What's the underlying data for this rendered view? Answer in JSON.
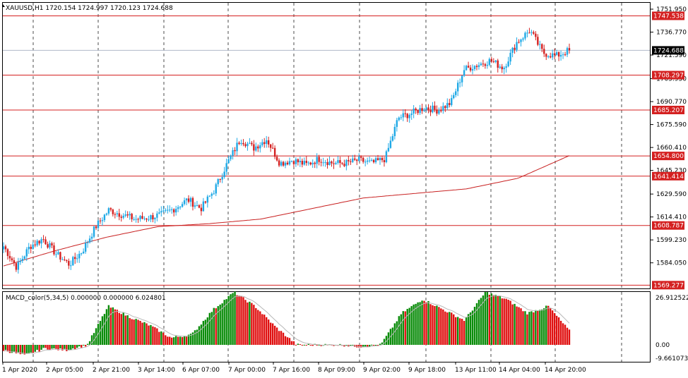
{
  "main_chart": {
    "info_line": "XAUUSD,H1  1720.154 1724.997 1720.123 1724.688",
    "price_scale": {
      "ticks": [
        "1751.950",
        "1736.770",
        "1721.590",
        "1705.950",
        "1690.770",
        "1675.590",
        "1660.410",
        "1645.230",
        "1629.590",
        "1614.410",
        "1599.230",
        "1584.050"
      ],
      "tagged_levels": [
        "1747.538",
        "1708.297",
        "1685.207",
        "1654.800",
        "1641.414",
        "1608.787",
        "1569.277"
      ],
      "current_price_tag": "1724.688"
    }
  },
  "sub_window": {
    "title": "MACD_color(5,34,5) 0.000000 0.000000 6.024801",
    "scale": [
      "26.912522",
      "0.00",
      "-9.661073"
    ]
  },
  "time_axis": [
    "1 Apr 2020",
    "2 Apr 05:00",
    "2 Apr 21:00",
    "3 Apr 14:00",
    "6 Apr 07:00",
    "7 Apr 00:00",
    "7 Apr 16:00",
    "8 Apr 09:00",
    "9 Apr 02:00",
    "9 Apr 18:00",
    "13 Apr 11:00",
    "14 Apr 04:00",
    "14 Apr 20:00"
  ],
  "colors": {
    "bull": "#1fa9e6",
    "bear": "#d42020",
    "level_line": "#d42020",
    "ma_line": "#c82020",
    "histo_up": "#0a8c0a",
    "histo_down": "#e01010",
    "signal": "#b8b8b8",
    "grid": "#000000",
    "current_line": "#b0b8c8"
  },
  "chart_data": {
    "type": "candlestick",
    "symbol": "XAUUSD",
    "timeframe": "H1",
    "series": [
      {
        "name": "XAUUSD,H1",
        "waypoints": [
          1595,
          1581,
          1595,
          1600,
          1590,
          1583,
          1592,
          1608,
          1619,
          1616,
          1613,
          1614,
          1616,
          1620,
          1626,
          1620,
          1632,
          1650,
          1666,
          1660,
          1666,
          1650,
          1652,
          1649,
          1653,
          1650,
          1650,
          1652,
          1650,
          1653,
          1680,
          1683,
          1687,
          1685,
          1690,
          1712,
          1715,
          1718,
          1713,
          1730,
          1738,
          1723,
          1721,
          1724.688
        ]
      },
      {
        "name": "MA",
        "waypoints": [
          1582,
          1592,
          1601,
          1608,
          1610,
          1613,
          1620,
          1627,
          1630,
          1633,
          1640,
          1655
        ]
      },
      {
        "name": "MACD_color(5,34,5)",
        "waypoints": [
          -3,
          -6,
          -2,
          -3,
          0,
          22,
          16,
          11,
          4,
          6,
          20,
          30,
          22,
          10,
          0,
          0,
          0,
          -1,
          0,
          18,
          26,
          20,
          14,
          30,
          26,
          18,
          22,
          8
        ]
      }
    ],
    "ylim": [
      1569.277,
      1757.0
    ]
  }
}
